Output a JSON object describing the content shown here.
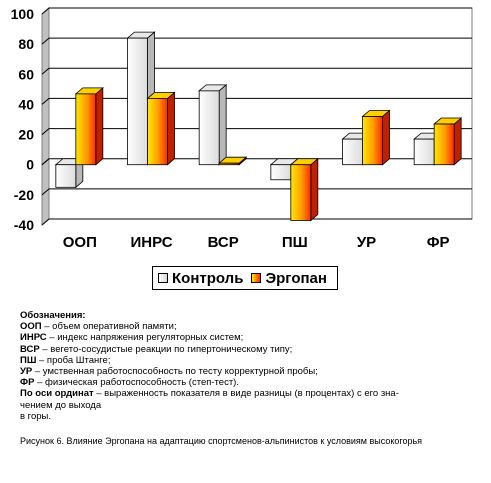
{
  "chart_data": {
    "type": "bar",
    "categories": [
      "ООП",
      "ИНРС",
      "ВСР",
      "ПШ",
      "УР",
      "ФР"
    ],
    "series": [
      {
        "name": "Контроль",
        "values": [
          -15,
          84,
          49,
          -10,
          17,
          17
        ],
        "color": "#f2f2f2"
      },
      {
        "name": "Эргопан",
        "values": [
          47,
          44,
          1,
          -37,
          32,
          27
        ],
        "color": "#ff6a00"
      }
    ],
    "yticks": [
      "100",
      "80",
      "60",
      "40",
      "20",
      "0",
      "-20",
      "-40"
    ],
    "ylim": [
      -40,
      100
    ],
    "grid": true,
    "legend_position": "bottom"
  },
  "notes": {
    "title": "Обозначения:",
    "lines": [
      {
        "term": "ООП",
        "text": " – объем оперативной памяти;"
      },
      {
        "term": "ИНРС",
        "text": " – индекс напряжения регуляторных систем;"
      },
      {
        "term": "ВСР",
        "text": " – вегето-сосудистые реакции по гипертоническому типу;"
      },
      {
        "term": "ПШ",
        "text": " – проба Штанге;"
      },
      {
        "term": "УР",
        "text": " – умственная работоспособность по тесту корректурной пробы;"
      },
      {
        "term": "ФР",
        "text": " – физическая работоспособность (степ-тест)."
      },
      {
        "term": "По оси ординат",
        "text": " – выраженность показателя в виде разницы (в процентах) с его зна-"
      }
    ],
    "cont1": "чением до выхода",
    "cont2": "в горы."
  },
  "caption": "Рисунок 6. Влияние Эргопана на адаптацию спортсменов-альпинистов к условиям высокогорья"
}
